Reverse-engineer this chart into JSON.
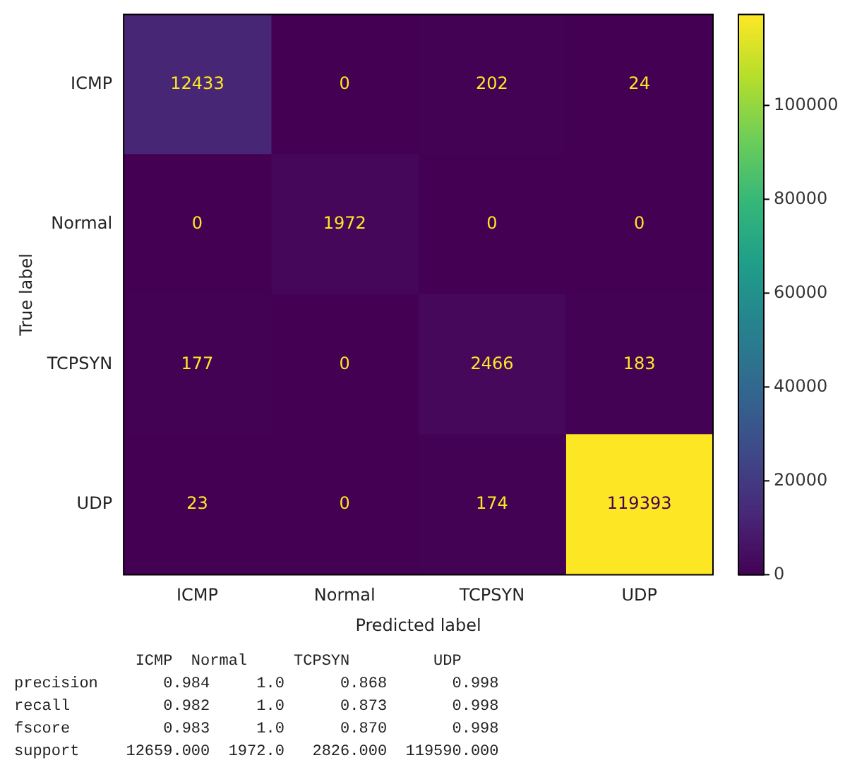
{
  "chart_data": {
    "type": "heatmap",
    "xlabel": "Predicted label",
    "ylabel": "True label",
    "categories": [
      "ICMP",
      "Normal",
      "TCPSYN",
      "UDP"
    ],
    "y_categories": [
      "ICMP",
      "Normal",
      "TCPSYN",
      "UDP"
    ],
    "cells": [
      [
        12433,
        0,
        202,
        24
      ],
      [
        0,
        1972,
        0,
        0
      ],
      [
        177,
        0,
        2466,
        183
      ],
      [
        23,
        0,
        174,
        119393
      ]
    ],
    "data_labels": true,
    "clim": [
      0,
      119393
    ],
    "cticks": [
      0,
      20000,
      40000,
      60000,
      80000,
      100000
    ],
    "annotations": [
      "             ICMP  Normal     TCPSYN         UDP",
      "precision       0.984     1.0      0.868       0.998",
      "recall          0.982     1.0      0.873       0.998",
      "fscore          0.983     1.0      0.870       0.998",
      "support     12659.000  1972.0   2826.000  119590.000"
    ]
  }
}
